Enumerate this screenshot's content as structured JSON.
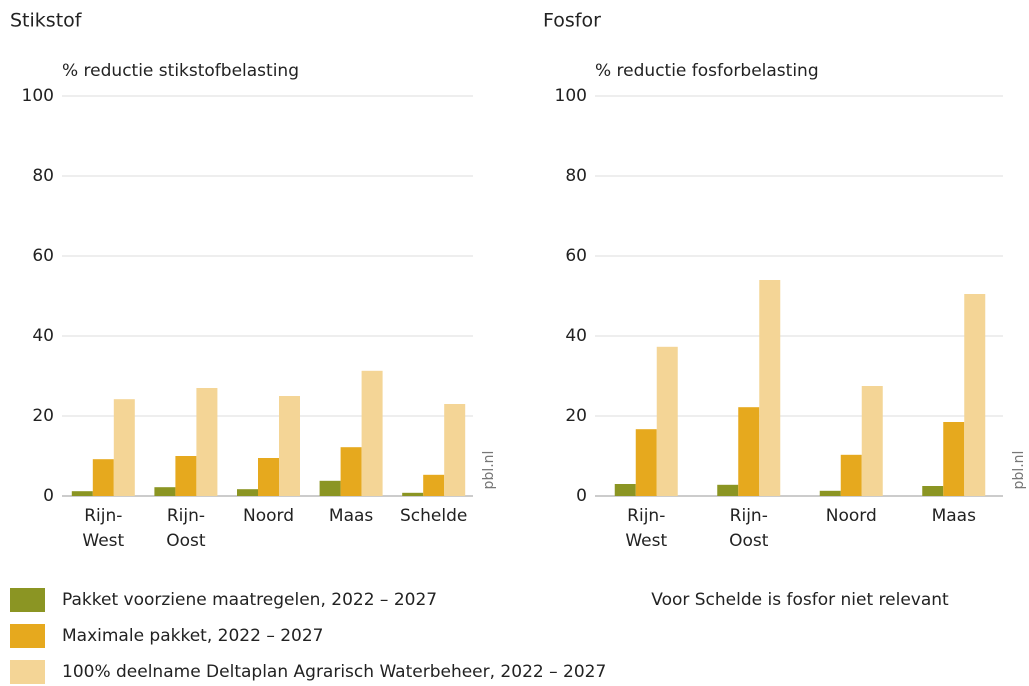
{
  "chart_data": [
    {
      "type": "bar",
      "title": "Stikstof",
      "y_label": "% reductie stikstofbelasting",
      "watermark": "pbl.nl",
      "categories": [
        "Rijn-\nWest",
        "Rijn-\nOost",
        "Noord",
        "Maas",
        "Schelde"
      ],
      "series": [
        {
          "color": "#8b9523",
          "values": [
            1.2,
            2.2,
            1.7,
            3.8,
            0.8
          ]
        },
        {
          "color": "#e6a91e",
          "values": [
            9.2,
            10,
            9.5,
            12.2,
            5.3
          ]
        },
        {
          "color": "#f4d596",
          "values": [
            24.2,
            27,
            25,
            31.3,
            23
          ]
        }
      ],
      "ylim": [
        0,
        100
      ],
      "yticks": [
        0,
        20,
        40,
        60,
        80,
        100
      ],
      "grid": true
    },
    {
      "type": "bar",
      "title": "Fosfor",
      "y_label": "% reductie fosforbelasting",
      "watermark": "pbl.nl",
      "categories": [
        "Rijn-\nWest",
        "Rijn-\nOost",
        "Noord",
        "Maas"
      ],
      "series": [
        {
          "color": "#8b9523",
          "values": [
            3.0,
            2.8,
            1.3,
            2.5
          ]
        },
        {
          "color": "#e6a91e",
          "values": [
            16.7,
            22.2,
            10.3,
            18.5
          ]
        },
        {
          "color": "#f4d596",
          "values": [
            37.3,
            54,
            27.5,
            50.5
          ]
        }
      ],
      "ylim": [
        0,
        100
      ],
      "yticks": [
        0,
        20,
        40,
        60,
        80,
        100
      ],
      "grid": true,
      "annotation": "Voor Schelde is fosfor niet relevant"
    }
  ],
  "legend": [
    {
      "name": "Pakket voorziene maatregelen, 2022 – 2027",
      "color": "#8b9523"
    },
    {
      "name": "Maximale pakket, 2022 – 2027",
      "color": "#e6a91e"
    },
    {
      "name": "100% deelname Deltaplan Agrarisch Waterbeheer, 2022 – 2027",
      "color": "#f4d596"
    }
  ]
}
